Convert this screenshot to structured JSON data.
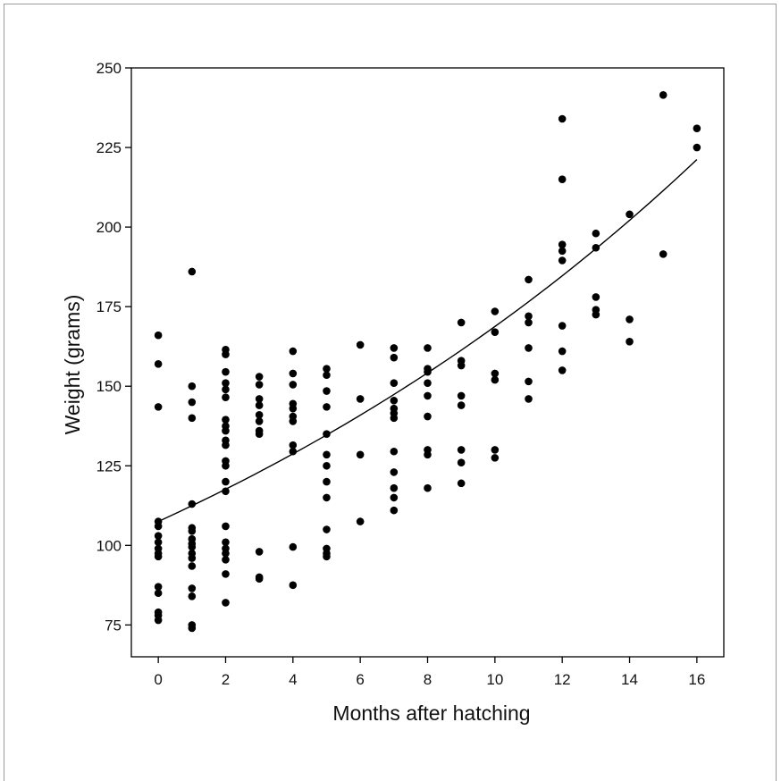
{
  "chart_data": {
    "type": "scatter",
    "title": "",
    "xlabel": "Months after hatching",
    "ylabel": "Weight (grams)",
    "xlim": [
      -0.8,
      16.8
    ],
    "ylim": [
      65,
      250
    ],
    "xticks": [
      0,
      2,
      4,
      6,
      8,
      10,
      12,
      14,
      16
    ],
    "yticks": [
      75,
      100,
      125,
      150,
      175,
      200,
      225,
      250
    ],
    "grid": false,
    "marker_color": "#000000",
    "points": [
      [
        0,
        166
      ],
      [
        0,
        157
      ],
      [
        0,
        143.5
      ],
      [
        0,
        107.5
      ],
      [
        0,
        106
      ],
      [
        0,
        103
      ],
      [
        0,
        101
      ],
      [
        0,
        99
      ],
      [
        0,
        97.5
      ],
      [
        0,
        96.5
      ],
      [
        0,
        87
      ],
      [
        0,
        85
      ],
      [
        0,
        79
      ],
      [
        0,
        78
      ],
      [
        0,
        76.5
      ],
      [
        1,
        186
      ],
      [
        1,
        150
      ],
      [
        1,
        145
      ],
      [
        1,
        140
      ],
      [
        1,
        113
      ],
      [
        1,
        105.5
      ],
      [
        1,
        104.5
      ],
      [
        1,
        102
      ],
      [
        1,
        100.5
      ],
      [
        1,
        99.5
      ],
      [
        1,
        97.5
      ],
      [
        1,
        96
      ],
      [
        1,
        93.5
      ],
      [
        1,
        86.5
      ],
      [
        1,
        84
      ],
      [
        1,
        75
      ],
      [
        1,
        74
      ],
      [
        2,
        161.5
      ],
      [
        2,
        160
      ],
      [
        2,
        154.5
      ],
      [
        2,
        151
      ],
      [
        2,
        149
      ],
      [
        2,
        146.5
      ],
      [
        2,
        139.5
      ],
      [
        2,
        137.5
      ],
      [
        2,
        136
      ],
      [
        2,
        133
      ],
      [
        2,
        131.5
      ],
      [
        2,
        126.5
      ],
      [
        2,
        125
      ],
      [
        2,
        120
      ],
      [
        2,
        117
      ],
      [
        2,
        106
      ],
      [
        2,
        101
      ],
      [
        2,
        99
      ],
      [
        2,
        97.5
      ],
      [
        2,
        95.5
      ],
      [
        2,
        91
      ],
      [
        2,
        82
      ],
      [
        3,
        153
      ],
      [
        3,
        150.5
      ],
      [
        3,
        146
      ],
      [
        3,
        144
      ],
      [
        3,
        141
      ],
      [
        3,
        139
      ],
      [
        3,
        136
      ],
      [
        3,
        135
      ],
      [
        3,
        98
      ],
      [
        3,
        90
      ],
      [
        3,
        89.5
      ],
      [
        4,
        161
      ],
      [
        4,
        154
      ],
      [
        4,
        150.5
      ],
      [
        4,
        144.5
      ],
      [
        4,
        143
      ],
      [
        4,
        140.5
      ],
      [
        4,
        139
      ],
      [
        4,
        131.5
      ],
      [
        4,
        129.5
      ],
      [
        4,
        99.5
      ],
      [
        4,
        87.5
      ],
      [
        5,
        155.5
      ],
      [
        5,
        153.5
      ],
      [
        5,
        148.5
      ],
      [
        5,
        143.5
      ],
      [
        5,
        135
      ],
      [
        5,
        128.5
      ],
      [
        5,
        125
      ],
      [
        5,
        120
      ],
      [
        5,
        115
      ],
      [
        5,
        105
      ],
      [
        5,
        99
      ],
      [
        5,
        97.5
      ],
      [
        5,
        96.5
      ],
      [
        6,
        163
      ],
      [
        6,
        146
      ],
      [
        6,
        128.5
      ],
      [
        6,
        107.5
      ],
      [
        7,
        162
      ],
      [
        7,
        159
      ],
      [
        7,
        151
      ],
      [
        7,
        145.5
      ],
      [
        7,
        143
      ],
      [
        7,
        141.5
      ],
      [
        7,
        140
      ],
      [
        7,
        129.5
      ],
      [
        7,
        123
      ],
      [
        7,
        118
      ],
      [
        7,
        115
      ],
      [
        7,
        111
      ],
      [
        8,
        162
      ],
      [
        8,
        155.5
      ],
      [
        8,
        154.5
      ],
      [
        8,
        151
      ],
      [
        8,
        147
      ],
      [
        8,
        140.5
      ],
      [
        8,
        130
      ],
      [
        8,
        128.5
      ],
      [
        8,
        118
      ],
      [
        9,
        170
      ],
      [
        9,
        158
      ],
      [
        9,
        156.5
      ],
      [
        9,
        147
      ],
      [
        9,
        144
      ],
      [
        9,
        130
      ],
      [
        9,
        126
      ],
      [
        9,
        119.5
      ],
      [
        10,
        173.5
      ],
      [
        10,
        167
      ],
      [
        10,
        154
      ],
      [
        10,
        152
      ],
      [
        10,
        130
      ],
      [
        10,
        127.5
      ],
      [
        11,
        183.5
      ],
      [
        11,
        172
      ],
      [
        11,
        170
      ],
      [
        11,
        162
      ],
      [
        11,
        151.5
      ],
      [
        11,
        146
      ],
      [
        12,
        234
      ],
      [
        12,
        215
      ],
      [
        12,
        194.5
      ],
      [
        12,
        192.5
      ],
      [
        12,
        189.5
      ],
      [
        12,
        169
      ],
      [
        12,
        161
      ],
      [
        12,
        155
      ],
      [
        13,
        198
      ],
      [
        13,
        193.5
      ],
      [
        13,
        178
      ],
      [
        13,
        174
      ],
      [
        13,
        172.5
      ],
      [
        14,
        204
      ],
      [
        14,
        171
      ],
      [
        14,
        164
      ],
      [
        15,
        241.5
      ],
      [
        15,
        191.5
      ],
      [
        16,
        231
      ],
      [
        16,
        225
      ]
    ],
    "fit_curve": {
      "type": "exponential",
      "a": 107.5,
      "b": 0.0451,
      "x_range": [
        0,
        16
      ]
    }
  }
}
